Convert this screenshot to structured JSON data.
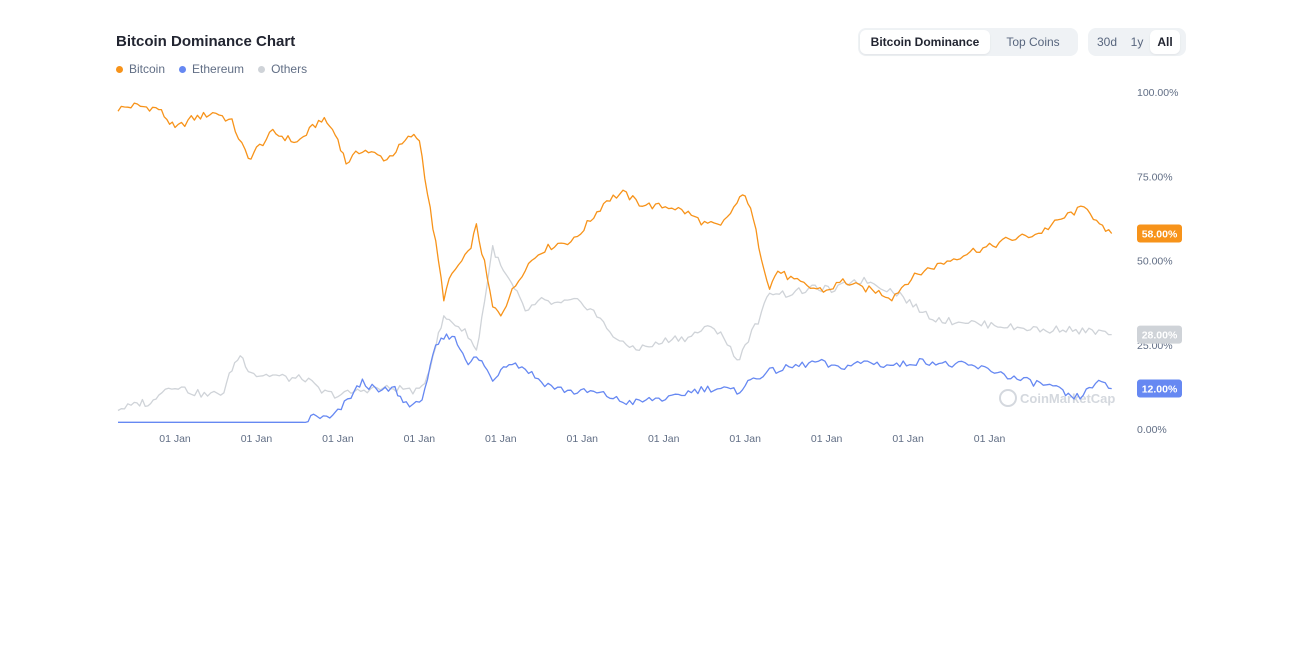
{
  "header": {
    "title": "Bitcoin Dominance Chart"
  },
  "legend": [
    {
      "label": "Bitcoin",
      "color": "#f7931a"
    },
    {
      "label": "Ethereum",
      "color": "#6688f2"
    },
    {
      "label": "Others",
      "color": "#cfd3d8"
    }
  ],
  "view_tabs": [
    {
      "label": "Bitcoin Dominance",
      "active": true
    },
    {
      "label": "Top Coins",
      "active": false
    }
  ],
  "range_tabs": [
    {
      "label": "30d",
      "active": false
    },
    {
      "label": "1y",
      "active": false
    },
    {
      "label": "All",
      "active": true
    }
  ],
  "watermark": "CoinMarketCap",
  "chart_data": {
    "type": "line",
    "ylim": [
      0,
      100
    ],
    "y_ticks": [
      "0.00%",
      "25.00%",
      "50.00%",
      "75.00%",
      "100.00%"
    ],
    "x_tick_labels": [
      "01 Jan",
      "01 Jan",
      "01 Jan",
      "01 Jan",
      "01 Jan",
      "01 Jan",
      "01 Jan",
      "01 Jan",
      "01 Jan",
      "01 Jan",
      "01 Jan"
    ],
    "x_domain": [
      2013.3,
      2025.7
    ],
    "x_ticks": [
      2014,
      2015,
      2016,
      2017,
      2018,
      2019,
      2020,
      2021,
      2022,
      2023,
      2024
    ],
    "grid": false,
    "legend_position": "top-left",
    "series": [
      {
        "name": "Bitcoin",
        "color": "#f7931a",
        "current_label": "58.00%",
        "points": [
          [
            2013.3,
            95
          ],
          [
            2013.5,
            96
          ],
          [
            2013.8,
            95
          ],
          [
            2013.9,
            92
          ],
          [
            2014.0,
            89
          ],
          [
            2014.2,
            92
          ],
          [
            2014.5,
            94
          ],
          [
            2014.7,
            91
          ],
          [
            2014.9,
            80
          ],
          [
            2015.0,
            83
          ],
          [
            2015.2,
            88
          ],
          [
            2015.5,
            85
          ],
          [
            2015.8,
            92
          ],
          [
            2015.9,
            90
          ],
          [
            2016.0,
            86
          ],
          [
            2016.1,
            79
          ],
          [
            2016.3,
            83
          ],
          [
            2016.6,
            80
          ],
          [
            2016.9,
            87
          ],
          [
            2017.0,
            86
          ],
          [
            2017.1,
            70
          ],
          [
            2017.2,
            55
          ],
          [
            2017.3,
            39
          ],
          [
            2017.4,
            46
          ],
          [
            2017.6,
            52
          ],
          [
            2017.7,
            60
          ],
          [
            2017.8,
            49
          ],
          [
            2017.9,
            36
          ],
          [
            2018.0,
            34
          ],
          [
            2018.1,
            39
          ],
          [
            2018.3,
            48
          ],
          [
            2018.5,
            53
          ],
          [
            2018.7,
            55
          ],
          [
            2018.9,
            56
          ],
          [
            2019.1,
            62
          ],
          [
            2019.3,
            68
          ],
          [
            2019.5,
            70
          ],
          [
            2019.7,
            67
          ],
          [
            2019.9,
            66
          ],
          [
            2020.1,
            66
          ],
          [
            2020.3,
            64
          ],
          [
            2020.5,
            61
          ],
          [
            2020.7,
            60
          ],
          [
            2020.9,
            67
          ],
          [
            2021.0,
            70
          ],
          [
            2021.1,
            62
          ],
          [
            2021.2,
            51
          ],
          [
            2021.3,
            42
          ],
          [
            2021.4,
            47
          ],
          [
            2021.6,
            44
          ],
          [
            2021.8,
            42
          ],
          [
            2022.0,
            41
          ],
          [
            2022.2,
            44
          ],
          [
            2022.4,
            42
          ],
          [
            2022.6,
            41
          ],
          [
            2022.8,
            39
          ],
          [
            2023.0,
            44
          ],
          [
            2023.2,
            47
          ],
          [
            2023.4,
            49
          ],
          [
            2023.6,
            51
          ],
          [
            2023.8,
            53
          ],
          [
            2024.0,
            54
          ],
          [
            2024.2,
            56
          ],
          [
            2024.4,
            57
          ],
          [
            2024.6,
            58
          ],
          [
            2024.8,
            61
          ],
          [
            2025.0,
            64
          ],
          [
            2025.2,
            66
          ],
          [
            2025.35,
            60
          ],
          [
            2025.5,
            58
          ]
        ]
      },
      {
        "name": "Ethereum",
        "color": "#6688f2",
        "current_label": "12.00%",
        "points": [
          [
            2013.3,
            2
          ],
          [
            2015.6,
            2
          ],
          [
            2015.7,
            4
          ],
          [
            2015.9,
            3
          ],
          [
            2016.0,
            5
          ],
          [
            2016.2,
            11
          ],
          [
            2016.3,
            14
          ],
          [
            2016.5,
            11
          ],
          [
            2016.7,
            12
          ],
          [
            2016.8,
            8
          ],
          [
            2017.0,
            7
          ],
          [
            2017.1,
            15
          ],
          [
            2017.2,
            24
          ],
          [
            2017.3,
            27
          ],
          [
            2017.4,
            28
          ],
          [
            2017.5,
            24
          ],
          [
            2017.6,
            20
          ],
          [
            2017.7,
            21
          ],
          [
            2017.8,
            19
          ],
          [
            2017.9,
            14
          ],
          [
            2018.0,
            18
          ],
          [
            2018.1,
            20
          ],
          [
            2018.3,
            18
          ],
          [
            2018.5,
            14
          ],
          [
            2018.7,
            12
          ],
          [
            2018.9,
            11
          ],
          [
            2019.1,
            11
          ],
          [
            2019.3,
            10
          ],
          [
            2019.5,
            8
          ],
          [
            2019.7,
            8
          ],
          [
            2019.9,
            9
          ],
          [
            2020.1,
            9
          ],
          [
            2020.3,
            11
          ],
          [
            2020.5,
            12
          ],
          [
            2020.7,
            12
          ],
          [
            2020.9,
            11
          ],
          [
            2021.0,
            13
          ],
          [
            2021.1,
            15
          ],
          [
            2021.3,
            17
          ],
          [
            2021.5,
            18
          ],
          [
            2021.7,
            19
          ],
          [
            2021.9,
            20
          ],
          [
            2022.1,
            18
          ],
          [
            2022.3,
            19
          ],
          [
            2022.5,
            20
          ],
          [
            2022.7,
            19
          ],
          [
            2022.9,
            19
          ],
          [
            2023.1,
            20
          ],
          [
            2023.3,
            20
          ],
          [
            2023.5,
            19
          ],
          [
            2023.7,
            19
          ],
          [
            2023.9,
            18
          ],
          [
            2024.1,
            17
          ],
          [
            2024.3,
            15
          ],
          [
            2024.5,
            14
          ],
          [
            2024.7,
            13
          ],
          [
            2024.9,
            11
          ],
          [
            2025.0,
            9
          ],
          [
            2025.15,
            10
          ],
          [
            2025.3,
            14
          ],
          [
            2025.5,
            12
          ]
        ]
      },
      {
        "name": "Others",
        "color": "#cfd3d8",
        "current_label": "28.00%",
        "points": [
          [
            2013.3,
            6
          ],
          [
            2013.5,
            7
          ],
          [
            2013.6,
            8
          ],
          [
            2013.7,
            7
          ],
          [
            2013.8,
            11
          ],
          [
            2014.0,
            13
          ],
          [
            2014.2,
            11
          ],
          [
            2014.4,
            10
          ],
          [
            2014.6,
            11
          ],
          [
            2014.7,
            18
          ],
          [
            2014.8,
            22
          ],
          [
            2014.9,
            18
          ],
          [
            2015.0,
            16
          ],
          [
            2015.2,
            16
          ],
          [
            2015.4,
            15
          ],
          [
            2015.6,
            15
          ],
          [
            2015.8,
            11
          ],
          [
            2016.0,
            10
          ],
          [
            2016.2,
            11
          ],
          [
            2016.4,
            12
          ],
          [
            2016.6,
            12
          ],
          [
            2016.8,
            12
          ],
          [
            2017.0,
            11
          ],
          [
            2017.1,
            16
          ],
          [
            2017.2,
            25
          ],
          [
            2017.3,
            33
          ],
          [
            2017.4,
            32
          ],
          [
            2017.6,
            28
          ],
          [
            2017.7,
            23
          ],
          [
            2017.8,
            38
          ],
          [
            2017.9,
            54
          ],
          [
            2018.0,
            48
          ],
          [
            2018.1,
            44
          ],
          [
            2018.2,
            40
          ],
          [
            2018.3,
            35
          ],
          [
            2018.5,
            38
          ],
          [
            2018.7,
            37
          ],
          [
            2018.9,
            38
          ],
          [
            2019.1,
            36
          ],
          [
            2019.3,
            30
          ],
          [
            2019.5,
            25
          ],
          [
            2019.7,
            24
          ],
          [
            2019.9,
            25
          ],
          [
            2020.1,
            27
          ],
          [
            2020.3,
            27
          ],
          [
            2020.5,
            30
          ],
          [
            2020.7,
            29
          ],
          [
            2020.9,
            20
          ],
          [
            2021.0,
            25
          ],
          [
            2021.2,
            34
          ],
          [
            2021.3,
            41
          ],
          [
            2021.5,
            40
          ],
          [
            2021.7,
            41
          ],
          [
            2021.9,
            42
          ],
          [
            2022.1,
            41
          ],
          [
            2022.3,
            44
          ],
          [
            2022.5,
            44
          ],
          [
            2022.7,
            42
          ],
          [
            2022.9,
            40
          ],
          [
            2023.1,
            36
          ],
          [
            2023.3,
            33
          ],
          [
            2023.5,
            32
          ],
          [
            2023.7,
            32
          ],
          [
            2023.9,
            31
          ],
          [
            2024.1,
            31
          ],
          [
            2024.3,
            30
          ],
          [
            2024.5,
            30
          ],
          [
            2024.7,
            29
          ],
          [
            2024.9,
            30
          ],
          [
            2025.1,
            29
          ],
          [
            2025.3,
            29
          ],
          [
            2025.5,
            28
          ]
        ]
      }
    ]
  }
}
